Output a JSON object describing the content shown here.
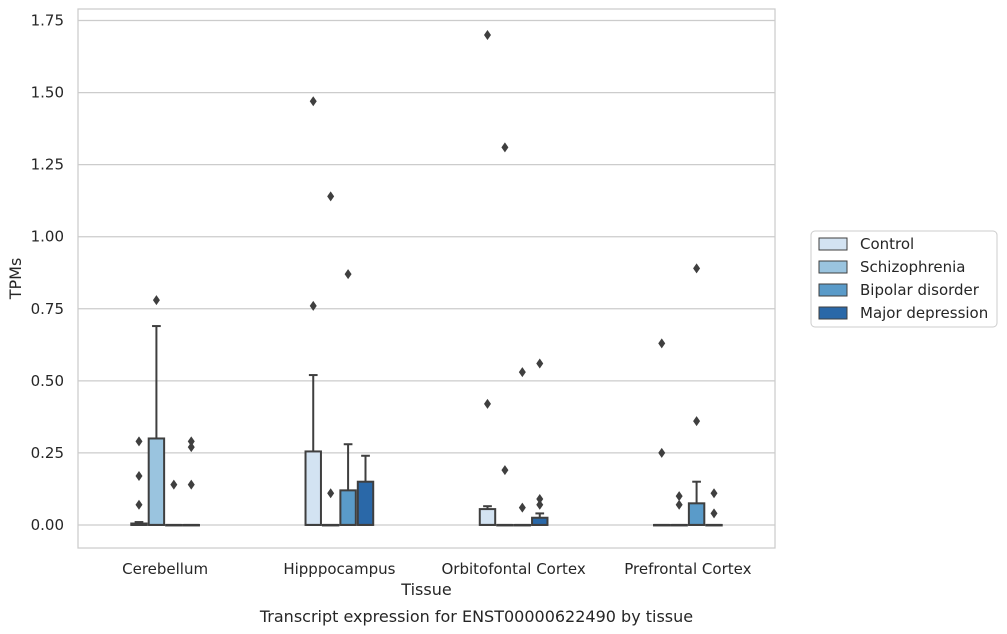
{
  "chart_data": {
    "type": "box",
    "xlabel": "Tissue",
    "ylabel": "TPMs",
    "caption": "Transcript expression for ENST00000622490 by tissue",
    "ylim": [
      -0.08,
      1.79
    ],
    "yticks": [
      "0.00",
      "0.25",
      "0.50",
      "0.75",
      "1.00",
      "1.25",
      "1.50",
      "1.75"
    ],
    "grid": "horizontal",
    "legend_position": "right",
    "categories": [
      "Cerebellum",
      "Hipppocampus",
      "Orbitofontal Cortex",
      "Prefrontal Cortex"
    ],
    "series": [
      {
        "name": "Control",
        "color": "#d3e3f2",
        "boxes": [
          {
            "q1": 0,
            "median": 0,
            "q3": 0.005,
            "whisker_low": 0,
            "whisker_high": 0.01,
            "outliers": [
              0.07,
              0.17,
              0.29
            ]
          },
          {
            "q1": 0,
            "median": 0,
            "q3": 0.255,
            "whisker_low": 0,
            "whisker_high": 0.52,
            "outliers": [
              0.76,
              1.47
            ]
          },
          {
            "q1": 0,
            "median": 0,
            "q3": 0.055,
            "whisker_low": 0,
            "whisker_high": 0.065,
            "outliers": [
              0.42,
              1.7
            ]
          },
          {
            "q1": 0,
            "median": 0,
            "q3": 0,
            "whisker_low": 0,
            "whisker_high": 0,
            "outliers": [
              0.25,
              0.63
            ]
          }
        ]
      },
      {
        "name": "Schizophrenia",
        "color": "#9ac4df",
        "boxes": [
          {
            "q1": 0,
            "median": 0,
            "q3": 0.3,
            "whisker_low": 0,
            "whisker_high": 0.69,
            "outliers": [
              0.78
            ]
          },
          {
            "q1": 0,
            "median": 0,
            "q3": 0,
            "whisker_low": 0,
            "whisker_high": 0,
            "outliers": [
              0.11,
              1.14
            ]
          },
          {
            "q1": 0,
            "median": 0,
            "q3": 0,
            "whisker_low": 0,
            "whisker_high": 0,
            "outliers": [
              0.19,
              1.31
            ]
          },
          {
            "q1": 0,
            "median": 0,
            "q3": 0,
            "whisker_low": 0,
            "whisker_high": 0,
            "outliers": [
              0.07,
              0.1
            ]
          }
        ]
      },
      {
        "name": "Bipolar disorder",
        "color": "#5a9bc9",
        "boxes": [
          {
            "q1": 0,
            "median": 0,
            "q3": 0,
            "whisker_low": 0,
            "whisker_high": 0,
            "outliers": [
              0.14
            ]
          },
          {
            "q1": 0,
            "median": 0,
            "q3": 0.12,
            "whisker_low": 0,
            "whisker_high": 0.28,
            "outliers": [
              0.87
            ]
          },
          {
            "q1": 0,
            "median": 0,
            "q3": 0,
            "whisker_low": 0,
            "whisker_high": 0,
            "outliers": [
              0.06,
              0.53
            ]
          },
          {
            "q1": 0,
            "median": 0,
            "q3": 0.075,
            "whisker_low": 0,
            "whisker_high": 0.15,
            "outliers": [
              0.36,
              0.89
            ]
          }
        ]
      },
      {
        "name": "Major depression",
        "color": "#2a68a8",
        "boxes": [
          {
            "q1": 0,
            "median": 0,
            "q3": 0,
            "whisker_low": 0,
            "whisker_high": 0,
            "outliers": [
              0.14,
              0.27,
              0.29
            ]
          },
          {
            "q1": 0,
            "median": 0,
            "q3": 0.15,
            "whisker_low": 0,
            "whisker_high": 0.24,
            "outliers": []
          },
          {
            "q1": 0,
            "median": 0,
            "q3": 0.025,
            "whisker_low": 0,
            "whisker_high": 0.04,
            "outliers": [
              0.07,
              0.09,
              0.56
            ]
          },
          {
            "q1": 0,
            "median": 0,
            "q3": 0,
            "whisker_low": 0,
            "whisker_high": 0,
            "outliers": [
              0.04,
              0.11
            ]
          }
        ]
      }
    ]
  }
}
